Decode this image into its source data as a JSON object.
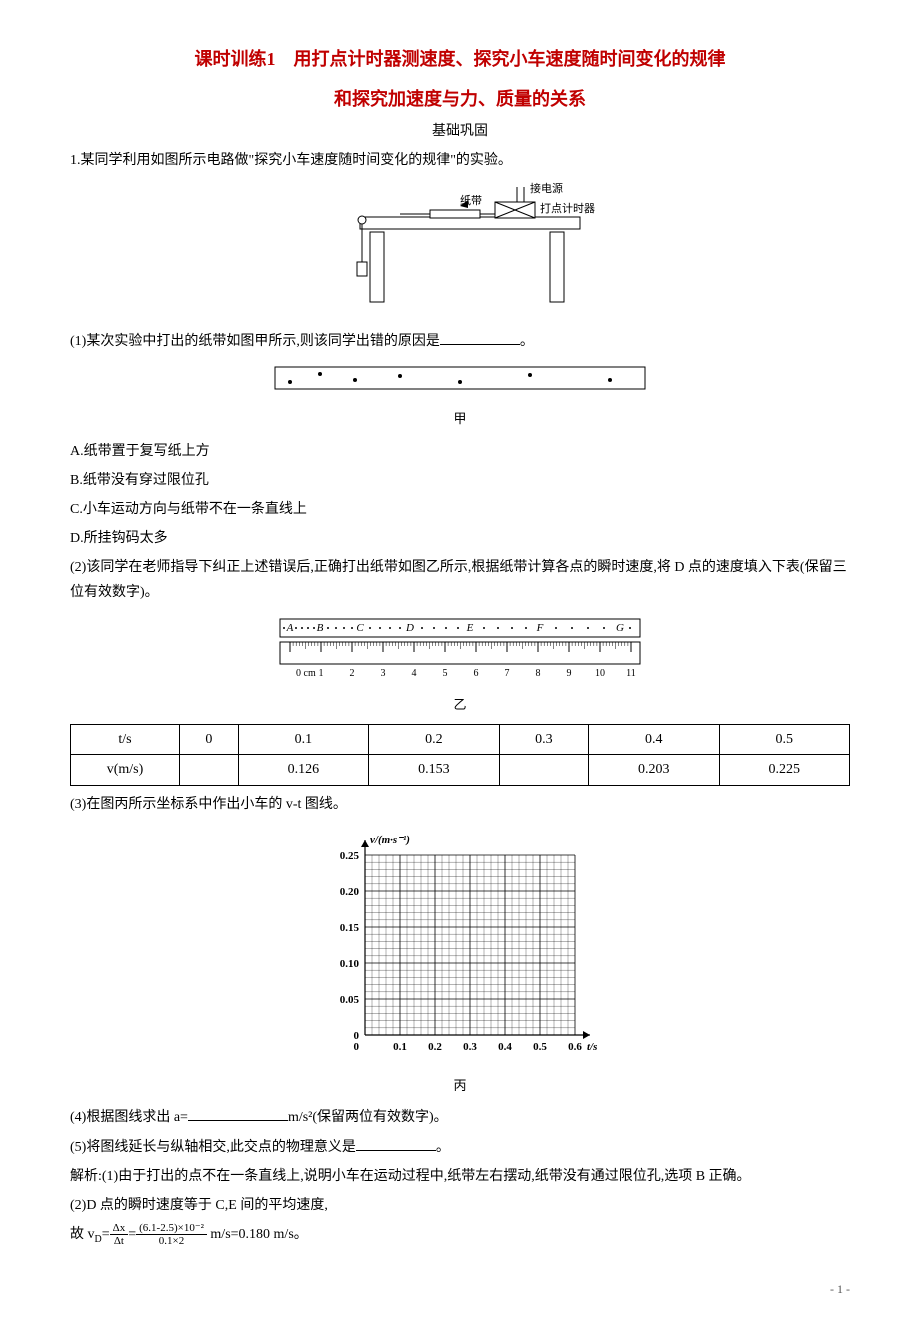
{
  "title_line1": "课时训练1　用打点计时器测速度、探究小车速度随时间变化的规律",
  "title_line2": "和探究加速度与力、质量的关系",
  "subtitle": "基础巩固",
  "q1_intro": "1.某同学利用如图所示电路做\"探究小车速度随时间变化的规律\"的实验。",
  "fig1_labels": {
    "power": "接电源",
    "timer": "打点计时器",
    "tape": "纸带"
  },
  "q1_1": "(1)某次实验中打出的纸带如图甲所示,则该同学出错的原因是",
  "q1_1_tail": "。",
  "caption_jia": "甲",
  "opt_A": "A.纸带置于复写纸上方",
  "opt_B": "B.纸带没有穿过限位孔",
  "opt_C": "C.小车运动方向与纸带不在一条直线上",
  "opt_D": "D.所挂钩码太多",
  "q1_2": "(2)该同学在老师指导下纠正上述错误后,正确打出纸带如图乙所示,根据纸带计算各点的瞬时速度,将 D 点的速度填入下表(保留三位有效数字)。",
  "ruler_points": [
    "A",
    "B",
    "C",
    "D",
    "E",
    "F",
    "G"
  ],
  "ruler_ticks": [
    "0 cm",
    "1",
    "2",
    "3",
    "4",
    "5",
    "6",
    "7",
    "8",
    "9",
    "10",
    "11"
  ],
  "caption_yi": "乙",
  "table": {
    "row1_label": "t/s",
    "row1": [
      "0",
      "0.1",
      "0.2",
      "0.3",
      "0.4",
      "0.5"
    ],
    "row2_label": "v(m/s)",
    "row2": [
      "",
      "0.126",
      "0.153",
      "",
      "0.203",
      "0.225"
    ]
  },
  "q1_3": "(3)在图丙所示坐标系中作出小车的 v-t 图线。",
  "chart": {
    "ylabel": "v/(m·s⁻¹)",
    "xlabel": "t/s",
    "yticks": [
      "0",
      "0.05",
      "0.10",
      "0.15",
      "0.20",
      "0.25"
    ],
    "xticks": [
      "0",
      "0.1",
      "0.2",
      "0.3",
      "0.4",
      "0.5",
      "0.6"
    ],
    "grid_color": "#000000",
    "minor_div": 5,
    "bg": "#ffffff",
    "axis_color": "#000000",
    "label_fontsize": 11
  },
  "caption_bing": "丙",
  "q1_4_a": "(4)根据图线求出 a=",
  "q1_4_b": "m/s²(保留两位有效数字)。",
  "q1_5_a": "(5)将图线延长与纵轴相交,此交点的物理意义是",
  "q1_5_b": "。",
  "ans1": "解析:(1)由于打出的点不在一条直线上,说明小车在运动过程中,纸带左右摆动,纸带没有通过限位孔,选项 B 正确。",
  "ans2": "(2)D 点的瞬时速度等于 C,E 间的平均速度,",
  "ans3_pre": "故 v",
  "ans3_sub": "D",
  "ans3_eq": "=",
  "frac1_num": "Δx",
  "frac1_den": "Δt",
  "ans3_mid": "=",
  "frac2_num": "(6.1-2.5)×10⁻²",
  "frac2_den": "0.1×2",
  "ans3_tail": " m/s=0.180 m/s。",
  "pagenum": "- 1 -"
}
